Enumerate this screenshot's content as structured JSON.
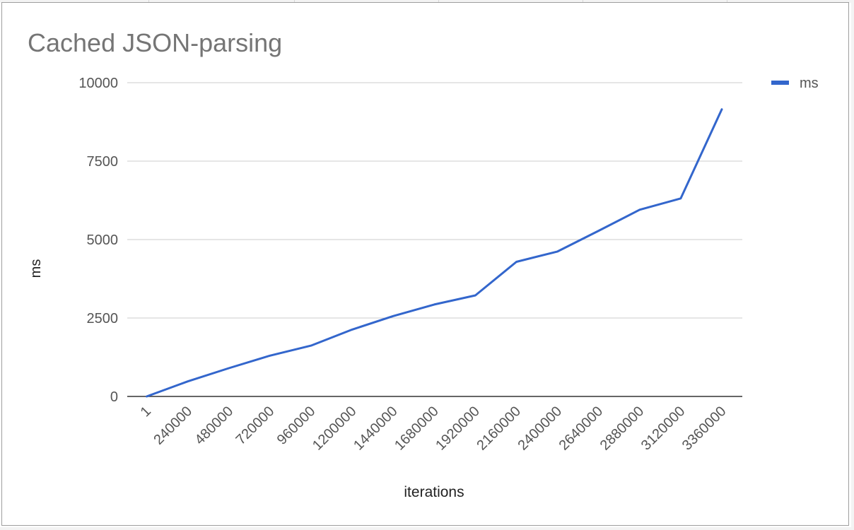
{
  "chart_data": {
    "type": "line",
    "title": "Cached JSON-parsing",
    "xlabel": "iterations",
    "ylabel": "ms",
    "ylim": [
      0,
      10000
    ],
    "yticks": [
      "0",
      "2500",
      "5000",
      "7500",
      "10000"
    ],
    "categories": [
      "1",
      "240000",
      "480000",
      "720000",
      "960000",
      "1200000",
      "1440000",
      "1680000",
      "1920000",
      "2160000",
      "2400000",
      "2640000",
      "2880000",
      "3120000",
      "3360000"
    ],
    "series": [
      {
        "name": "ms",
        "color": "#3366cc",
        "values": [
          0,
          480,
          900,
          1300,
          1620,
          2130,
          2560,
          2930,
          3220,
          4290,
          4620,
          5280,
          5950,
          6310,
          9150
        ]
      }
    ],
    "legend_position": "right",
    "grid": true
  }
}
